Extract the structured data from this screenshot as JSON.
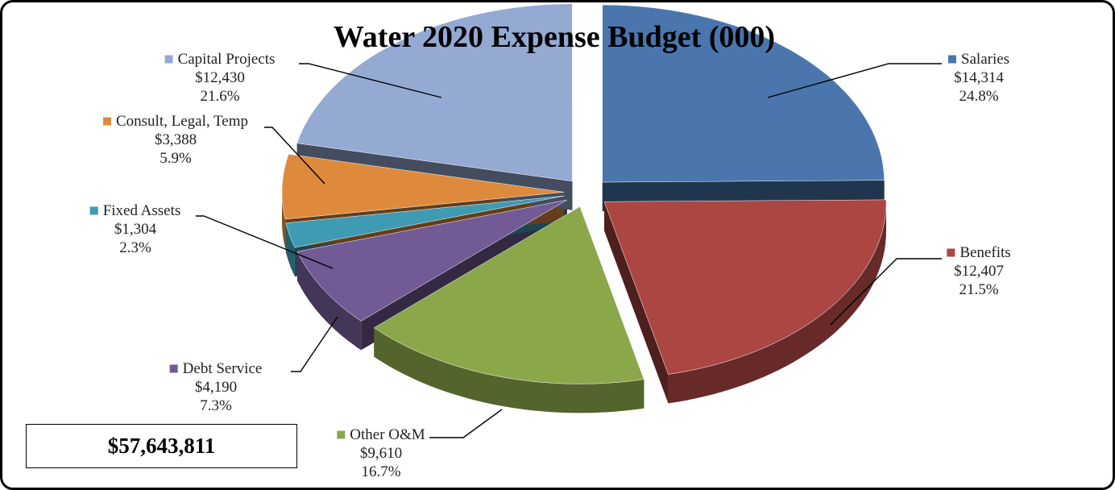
{
  "chart_data": {
    "type": "pie",
    "title": "Water 2020 Expense Budget (000)",
    "three_d": true,
    "exploded": true,
    "slices": [
      {
        "label": "Salaries",
        "value_text": "$14,314",
        "percent_text": "24.8%",
        "value": 14314,
        "percent": 24.8,
        "color": "#4a76ad"
      },
      {
        "label": "Benefits",
        "value_text": "$12,407",
        "percent_text": "21.5%",
        "value": 12407,
        "percent": 21.5,
        "color": "#ab4643"
      },
      {
        "label": "Other O&M",
        "value_text": "$9,610",
        "percent_text": "16.7%",
        "value": 9610,
        "percent": 16.7,
        "color": "#8aa84a"
      },
      {
        "label": "Debt Service",
        "value_text": "$4,190",
        "percent_text": "7.3%",
        "value": 4190,
        "percent": 7.3,
        "color": "#725a94"
      },
      {
        "label": "Fixed Assets",
        "value_text": "$1,304",
        "percent_text": "2.3%",
        "value": 1304,
        "percent": 2.3,
        "color": "#3e9bb2"
      },
      {
        "label": "Consult, Legal, Temp",
        "value_text": "$3,388",
        "percent_text": "5.9%",
        "value": 3388,
        "percent": 5.9,
        "color": "#de8a3d"
      },
      {
        "label": "Capital Projects",
        "value_text": "$12,430",
        "percent_text": "21.6%",
        "value": 12430,
        "percent": 21.6,
        "color": "#94aad3"
      }
    ]
  },
  "total": "$57,643,811"
}
